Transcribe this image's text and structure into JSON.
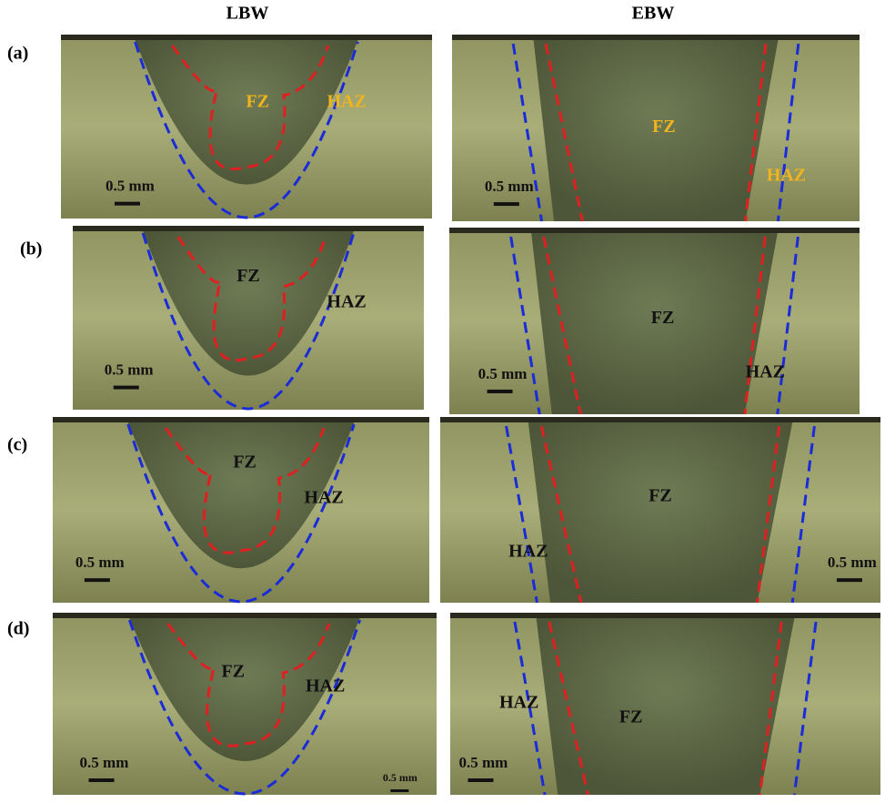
{
  "columns": [
    "LBW",
    "EBW"
  ],
  "rows": [
    {
      "label": "(a)",
      "panels": [
        {
          "fz": "FZ",
          "haz": "HAZ",
          "scale": "0.5 mm"
        },
        {
          "fz": "FZ",
          "haz": "HAZ",
          "scale": "0.5 mm"
        }
      ]
    },
    {
      "label": "(b)",
      "panels": [
        {
          "fz": "FZ",
          "haz": "HAZ",
          "scale": "0.5 mm"
        },
        {
          "fz": "FZ",
          "haz": "HAZ",
          "scale": "0.5 mm"
        }
      ]
    },
    {
      "label": "(c)",
      "panels": [
        {
          "fz": "FZ",
          "haz": "HAZ",
          "scale": "0.5 mm"
        },
        {
          "fz": "FZ",
          "haz": "HAZ",
          "scale": "0.5 mm"
        }
      ]
    },
    {
      "label": "(d)",
      "panels": [
        {
          "fz": "FZ",
          "haz": "HAZ",
          "scale": "0.5 mm",
          "extra_scale": "0.5 mm"
        },
        {
          "fz": "FZ",
          "haz": "HAZ",
          "scale": "0.5 mm"
        }
      ]
    }
  ]
}
